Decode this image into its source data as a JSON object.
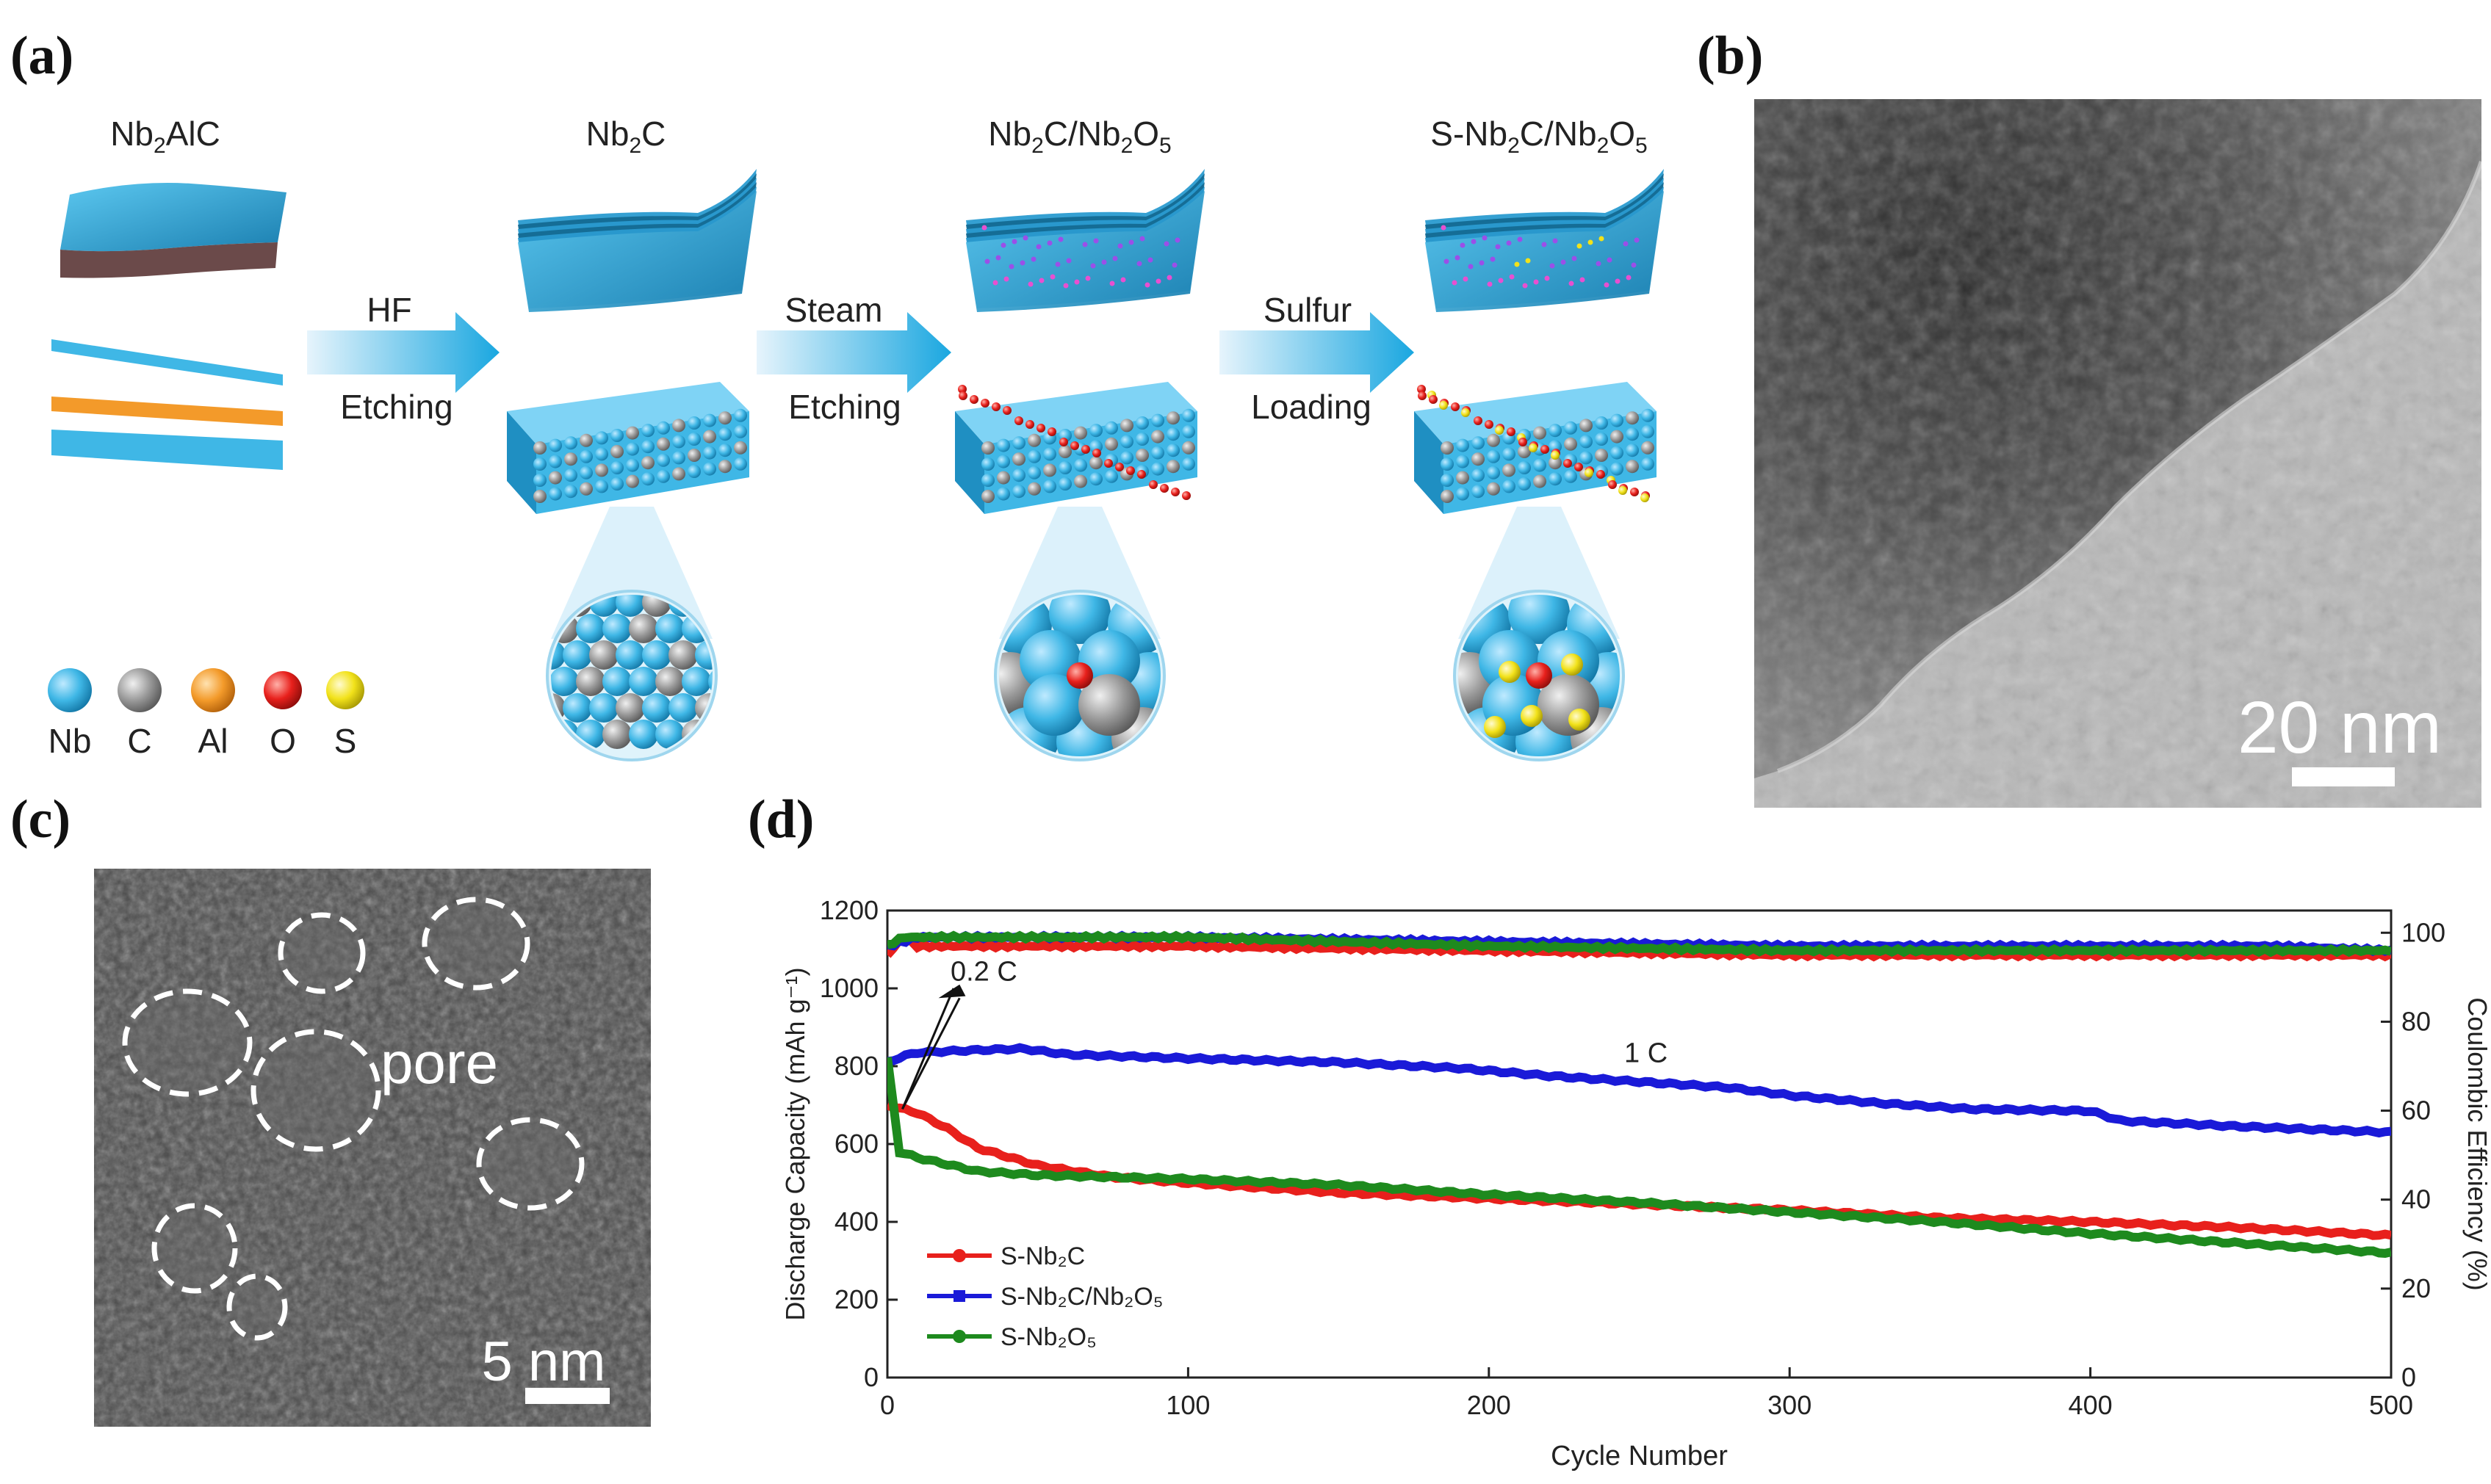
{
  "panels": {
    "a": {
      "letter": "(a)",
      "stages": [
        {
          "label": "Nb",
          "sub1": "2",
          "rest": "AlC"
        },
        {
          "label": "Nb",
          "sub1": "2",
          "rest": "C"
        },
        {
          "label": "Nb",
          "sub1": "2",
          "rest": "C/Nb",
          "sub2": "2",
          "rest2": "O",
          "sub3": "5"
        },
        {
          "label": "S-Nb",
          "sub1": "2",
          "rest": "C/Nb",
          "sub2": "2",
          "rest2": "O",
          "sub3": "5"
        }
      ],
      "steps": [
        {
          "top": "HF",
          "bottom": "Etching"
        },
        {
          "top": "Steam",
          "bottom": "Etching"
        },
        {
          "top": "Sulfur",
          "bottom": "Loading"
        }
      ],
      "legend": [
        {
          "symbol": "Nb",
          "color": "#3fb7e6"
        },
        {
          "symbol": "C",
          "color": "#9a9a9a"
        },
        {
          "symbol": "Al",
          "color": "#f39a2a"
        },
        {
          "symbol": "O",
          "color": "#e8201c"
        },
        {
          "symbol": "S",
          "color": "#f2e21a"
        }
      ]
    },
    "b": {
      "letter": "(b)",
      "scalebar": "20 nm"
    },
    "c": {
      "letter": "(c)",
      "annotation": "pore",
      "scalebar": "5 nm"
    },
    "d": {
      "letter": "(d)"
    }
  },
  "chart_data": {
    "type": "line",
    "xlabel": "Cycle Number",
    "ylabel": "Discharge Capacity (mAh g⁻¹)",
    "y2label": "Coulombic Efficiency (%)",
    "xlim": [
      0,
      500
    ],
    "ylim": [
      0,
      1200
    ],
    "y2lim": [
      0,
      105
    ],
    "xticks": [
      0,
      100,
      200,
      300,
      400,
      500
    ],
    "yticks": [
      0,
      200,
      400,
      600,
      800,
      1000,
      1200
    ],
    "y2ticks": [
      0,
      20,
      40,
      60,
      80,
      100
    ],
    "annotations": [
      "0.2 C",
      "1 C"
    ],
    "series": [
      {
        "name": "S-Nb₂C",
        "color": "#e8201c",
        "capacity": [
          [
            0,
            700
          ],
          [
            5,
            690
          ],
          [
            10,
            680
          ],
          [
            20,
            640
          ],
          [
            30,
            590
          ],
          [
            50,
            545
          ],
          [
            75,
            515
          ],
          [
            100,
            500
          ],
          [
            150,
            475
          ],
          [
            200,
            460
          ],
          [
            250,
            445
          ],
          [
            300,
            430
          ],
          [
            350,
            410
          ],
          [
            400,
            400
          ],
          [
            450,
            385
          ],
          [
            500,
            365
          ]
        ],
        "efficiency": [
          [
            0,
            95
          ],
          [
            5,
            99
          ],
          [
            10,
            97
          ],
          [
            50,
            97
          ],
          [
            100,
            97
          ],
          [
            200,
            96
          ],
          [
            300,
            95
          ],
          [
            400,
            95
          ],
          [
            450,
            95
          ],
          [
            500,
            95
          ]
        ]
      },
      {
        "name": "S-Nb₂C/Nb₂O₅",
        "color": "#1a1ad8",
        "capacity": [
          [
            0,
            810
          ],
          [
            5,
            825
          ],
          [
            10,
            835
          ],
          [
            25,
            840
          ],
          [
            45,
            845
          ],
          [
            60,
            830
          ],
          [
            100,
            820
          ],
          [
            150,
            810
          ],
          [
            190,
            795
          ],
          [
            220,
            775
          ],
          [
            250,
            760
          ],
          [
            280,
            745
          ],
          [
            300,
            725
          ],
          [
            330,
            705
          ],
          [
            360,
            690
          ],
          [
            400,
            685
          ],
          [
            410,
            660
          ],
          [
            450,
            645
          ],
          [
            500,
            630
          ]
        ],
        "efficiency": [
          [
            0,
            97
          ],
          [
            10,
            99
          ],
          [
            50,
            99
          ],
          [
            100,
            99
          ],
          [
            200,
            98
          ],
          [
            300,
            97
          ],
          [
            400,
            97
          ],
          [
            460,
            97
          ],
          [
            500,
            96
          ]
        ]
      },
      {
        "name": "S-Nb₂O₅",
        "color": "#1e8a1e",
        "capacity": [
          [
            0,
            820
          ],
          [
            4,
            580
          ],
          [
            10,
            565
          ],
          [
            30,
            530
          ],
          [
            50,
            520
          ],
          [
            100,
            510
          ],
          [
            150,
            495
          ],
          [
            200,
            470
          ],
          [
            250,
            450
          ],
          [
            300,
            425
          ],
          [
            350,
            400
          ],
          [
            400,
            370
          ],
          [
            450,
            345
          ],
          [
            500,
            320
          ]
        ],
        "efficiency": [
          [
            0,
            97
          ],
          [
            5,
            99
          ],
          [
            50,
            99
          ],
          [
            100,
            99
          ],
          [
            200,
            97
          ],
          [
            300,
            96
          ],
          [
            400,
            96
          ],
          [
            500,
            96
          ]
        ]
      }
    ]
  }
}
